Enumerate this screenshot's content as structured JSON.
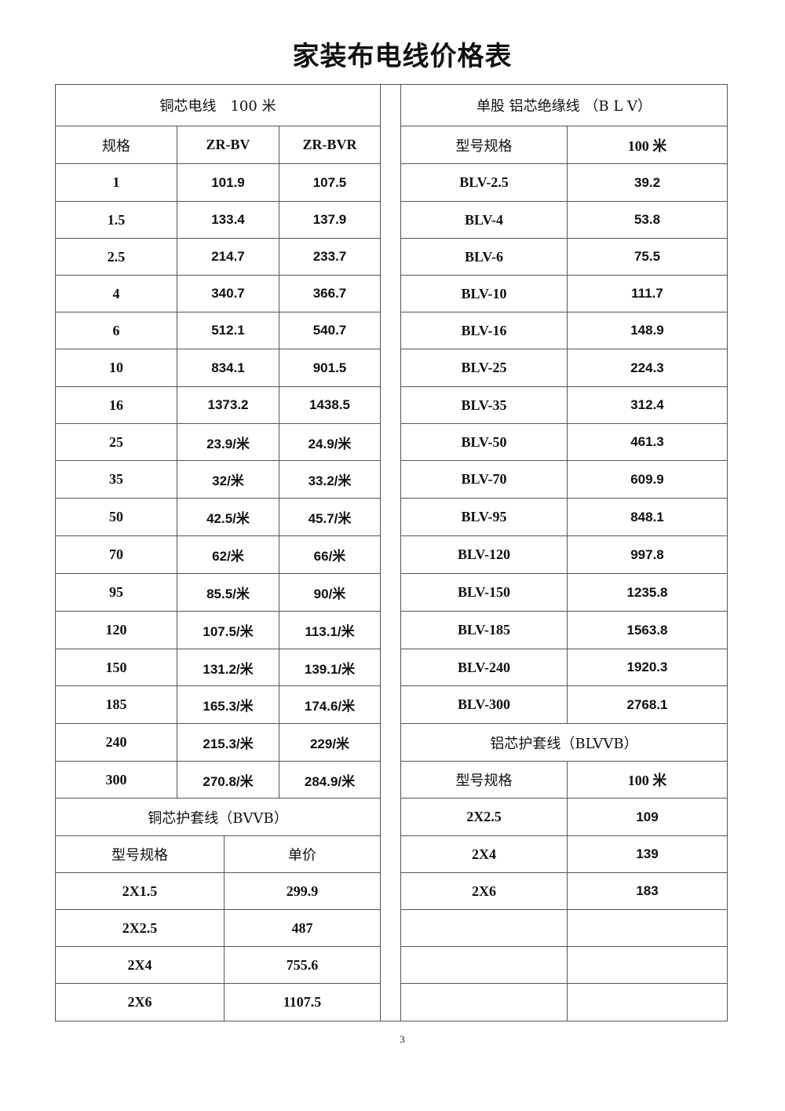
{
  "title": "家装布电线价格表",
  "left": {
    "header": "铜芯电线　100 米",
    "col_headers": [
      "规格",
      "ZR-BV",
      "ZR-BVR"
    ],
    "rows": [
      [
        "1",
        "101.9",
        "107.5"
      ],
      [
        "1.5",
        "133.4",
        "137.9"
      ],
      [
        "2.5",
        "214.7",
        "233.7"
      ],
      [
        "4",
        "340.7",
        "366.7"
      ],
      [
        "6",
        "512.1",
        "540.7"
      ],
      [
        "10",
        "834.1",
        "901.5"
      ],
      [
        "16",
        "1373.2",
        "1438.5"
      ],
      [
        "25",
        "23.9/米",
        "24.9/米"
      ],
      [
        "35",
        "32/米",
        "33.2/米"
      ],
      [
        "50",
        "42.5/米",
        "45.7/米"
      ],
      [
        "70",
        "62/米",
        "66/米"
      ],
      [
        "95",
        "85.5/米",
        "90/米"
      ],
      [
        "120",
        "107.5/米",
        "113.1/米"
      ],
      [
        "150",
        "131.2/米",
        "139.1/米"
      ],
      [
        "185",
        "165.3/米",
        "174.6/米"
      ],
      [
        "240",
        "215.3/米",
        "229/米"
      ],
      [
        "300",
        "270.8/米",
        "284.9/米"
      ]
    ],
    "sub_title": "铜芯护套线（BVVB）",
    "sub_headers": [
      "型号规格",
      "单价"
    ],
    "sub_rows": [
      [
        "2X1.5",
        "299.9"
      ],
      [
        "2X2.5",
        "487"
      ],
      [
        "2X4",
        "755.6"
      ],
      [
        "2X6",
        "1107.5"
      ]
    ]
  },
  "right": {
    "header": "单股 铝芯绝缘线 （B L V）",
    "col_headers": [
      "型号规格",
      "100 米"
    ],
    "rows": [
      [
        "BLV-2.5",
        "39.2"
      ],
      [
        "BLV-4",
        "53.8"
      ],
      [
        "BLV-6",
        "75.5"
      ],
      [
        "BLV-10",
        "111.7"
      ],
      [
        "BLV-16",
        "148.9"
      ],
      [
        "BLV-25",
        "224.3"
      ],
      [
        "BLV-35",
        "312.4"
      ],
      [
        "BLV-50",
        "461.3"
      ],
      [
        "BLV-70",
        "609.9"
      ],
      [
        "BLV-95",
        "848.1"
      ],
      [
        "BLV-120",
        "997.8"
      ],
      [
        "BLV-150",
        "1235.8"
      ],
      [
        "BLV-185",
        "1563.8"
      ],
      [
        "BLV-240",
        "1920.3"
      ],
      [
        "BLV-300",
        "2768.1"
      ]
    ],
    "sub_title": "铝芯护套线（BLVVB）",
    "sub_headers": [
      "型号规格",
      "100 米"
    ],
    "sub_rows": [
      [
        "2X2.5",
        "109"
      ],
      [
        "2X4",
        "139"
      ],
      [
        "2X6",
        "183"
      ],
      [
        "",
        ""
      ],
      [
        "",
        ""
      ],
      [
        "",
        ""
      ]
    ]
  },
  "page_number": "3"
}
